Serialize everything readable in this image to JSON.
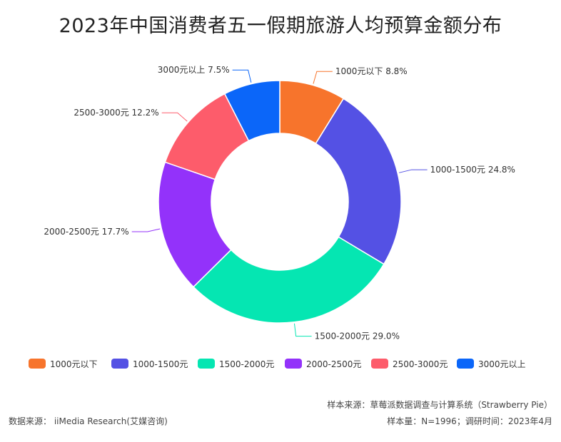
{
  "title": "2023年中国消费者五一假期旅游人均预算金额分布",
  "chart_data": {
    "type": "pie",
    "donut": true,
    "title": "2023年中国消费者五一假期旅游人均预算金额分布",
    "categories": [
      "1000元以下",
      "1000-1500元",
      "1500-2000元",
      "2000-2500元",
      "2500-3000元",
      "3000元以上"
    ],
    "values": [
      8.8,
      24.8,
      29.0,
      17.7,
      12.2,
      7.5
    ],
    "unit": "%",
    "slice_labels": [
      "1000元以下 8.8%",
      "1000-1500元 24.8%",
      "1500-2000元 29.0%",
      "2000-2500元 17.7%",
      "2500-3000元 12.2%",
      "3000元以上 7.5%"
    ],
    "colors": [
      "#F7742C",
      "#5451E4",
      "#05E6B2",
      "#9332FA",
      "#FD5C6B",
      "#0B66F9"
    ],
    "legend_placement": "bottom"
  },
  "footer": {
    "data_source": "数据来源： iiMedia Research(艾媒咨询)",
    "sample_source": "样本来源：草莓派数据调查与计算系统（Strawberry Pie）",
    "sample_info": "样本量：N=1996；调研时间：2023年4月"
  }
}
